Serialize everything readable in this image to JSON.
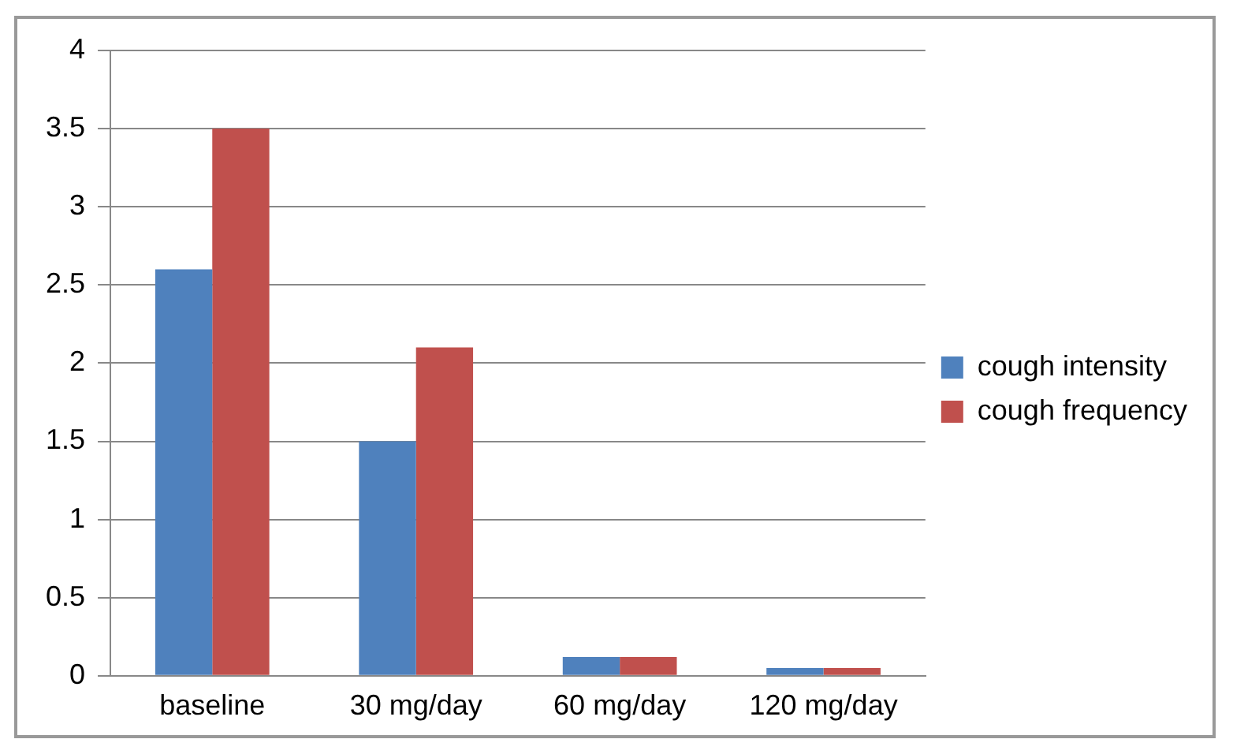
{
  "chart_data": {
    "type": "bar",
    "categories": [
      "baseline",
      "30 mg/day",
      "60 mg/day",
      "120 mg/day"
    ],
    "series": [
      {
        "name": "cough intensity",
        "color": "#4f81bd",
        "values": [
          2.6,
          1.5,
          0.12,
          0.05
        ]
      },
      {
        "name": "cough frequency",
        "color": "#c0504d",
        "values": [
          3.5,
          2.1,
          0.12,
          0.05
        ]
      }
    ],
    "ylim": [
      0,
      4
    ],
    "yticks": [
      0,
      0.5,
      1,
      1.5,
      2,
      2.5,
      3,
      3.5,
      4
    ],
    "grid": "y",
    "legend": "right"
  }
}
